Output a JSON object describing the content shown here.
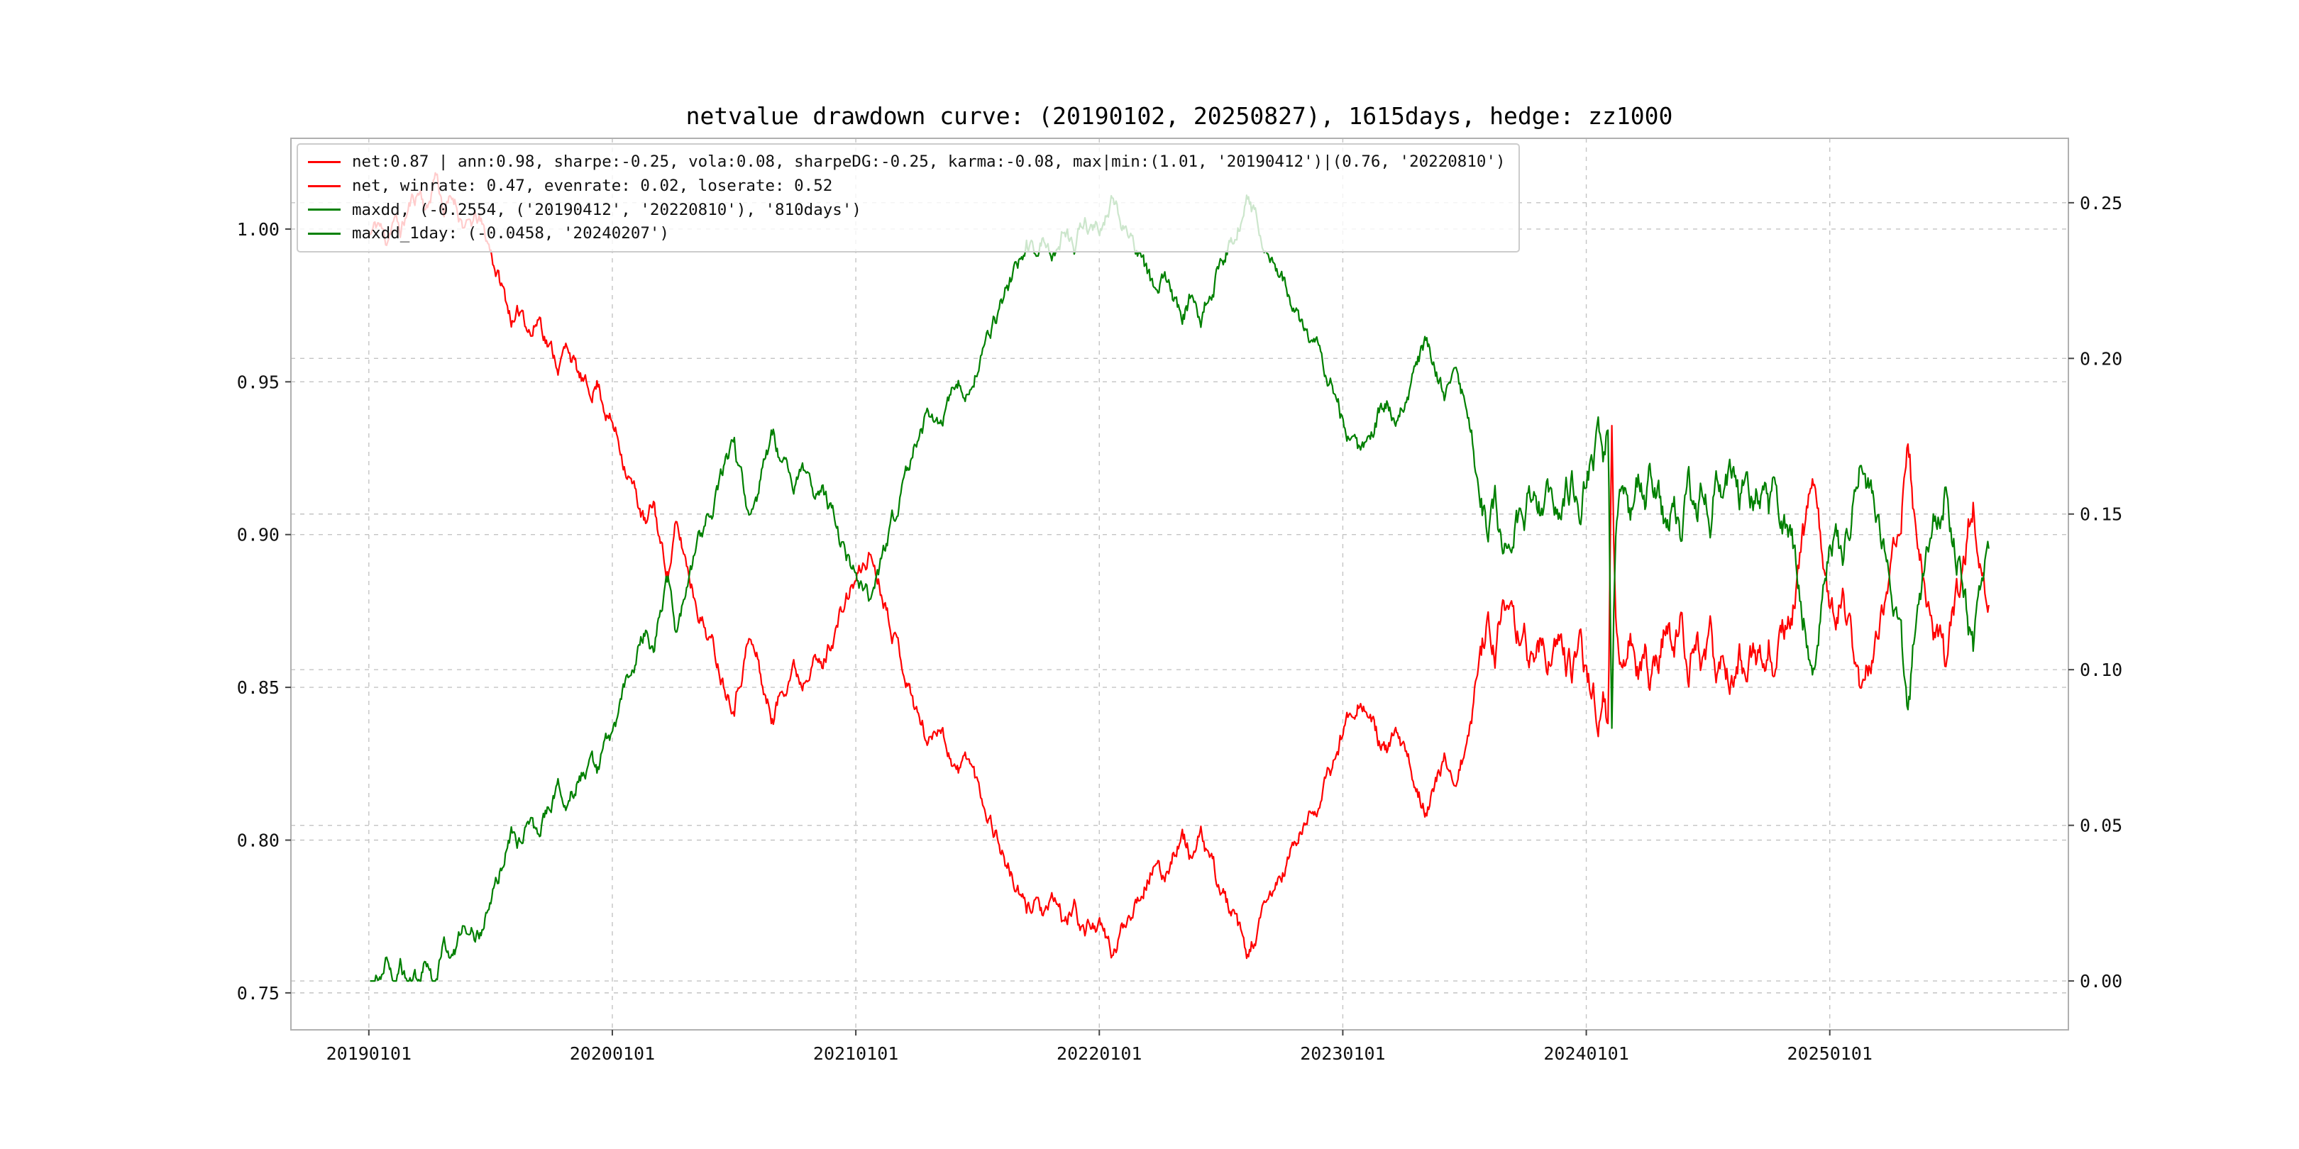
{
  "window": {
    "background": "#ffffff"
  },
  "chart_data": {
    "type": "line",
    "title": "netvalue drawdown curve: (20190102, 20250827), 1615days, hedge: zz1000",
    "x_tick_labels": [
      "20190101",
      "20200101",
      "20210101",
      "20220101",
      "20230101",
      "20240101",
      "20250101"
    ],
    "x_tick_years": [
      2019,
      2020,
      2021,
      2022,
      2023,
      2024,
      2025
    ],
    "x_range_years": [
      2018.68,
      2025.98
    ],
    "left_axis": {
      "ticks": [
        0.75,
        0.8,
        0.85,
        0.9,
        0.95,
        1.0
      ],
      "range": [
        0.7379,
        1.0297
      ]
    },
    "right_axis": {
      "ticks": [
        0.0,
        0.05,
        0.1,
        0.15,
        0.2,
        0.25
      ],
      "range": [
        -0.0157,
        0.2707
      ]
    },
    "grid": {
      "on": true,
      "style": "dashed",
      "color": "#c4c4c4"
    },
    "spine_color": "#b0b0b0",
    "tick_color": "#444444",
    "label_color": "#111111",
    "legend": {
      "position": "upper-left",
      "entries": [
        {
          "color": "#ff0000",
          "label": "net:0.87 | ann:0.98, sharpe:-0.25, vola:0.08, sharpeDG:-0.25, karma:-0.08, max|min:(1.01, '20190412')|(0.76, '20220810')"
        },
        {
          "color": "#ff0000",
          "label": "net, winrate: 0.47, evenrate: 0.02, loserate: 0.52"
        },
        {
          "color": "#008000",
          "label": "maxdd, (-0.2554, ('20190412', '20220810'), '810days')"
        },
        {
          "color": "#008000",
          "label": "maxdd_1day: (-0.0458, '20240207')"
        }
      ]
    },
    "stats": {
      "period_start": "20190102",
      "period_end": "20250827",
      "days": 1615,
      "hedge": "zz1000",
      "net": 0.87,
      "ann": 0.98,
      "sharpe": -0.25,
      "vola": 0.08,
      "sharpeDG": -0.25,
      "karma": -0.08,
      "max": {
        "value": 1.01,
        "date": "20190412"
      },
      "min": {
        "value": 0.76,
        "date": "20220810"
      },
      "winrate": 0.47,
      "evenrate": 0.02,
      "loserate": 0.52,
      "maxdd": {
        "value": -0.2554,
        "from": "20190412",
        "to": "20220810",
        "duration": "810days"
      },
      "maxdd_1day": {
        "value": -0.0458,
        "date": "20240207"
      }
    },
    "series": [
      {
        "name": "net",
        "axis": "left",
        "color": "#ff0000",
        "keypoints": [
          [
            2019.005,
            0.998
          ],
          [
            2019.04,
            1.002
          ],
          [
            2019.07,
            0.996
          ],
          [
            2019.1,
            1.004
          ],
          [
            2019.13,
            0.999
          ],
          [
            2019.17,
            1.008
          ],
          [
            2019.21,
            1.013
          ],
          [
            2019.24,
            1.006
          ],
          [
            2019.275,
            1.0194
          ],
          [
            2019.31,
            1.006
          ],
          [
            2019.35,
            1.01
          ],
          [
            2019.4,
            1.0
          ],
          [
            2019.45,
            1.003
          ],
          [
            2019.5,
            0.993
          ],
          [
            2019.53,
            0.985
          ],
          [
            2019.57,
            0.975
          ],
          [
            2019.6,
            0.968
          ],
          [
            2019.63,
            0.974
          ],
          [
            2019.67,
            0.966
          ],
          [
            2019.7,
            0.972
          ],
          [
            2019.74,
            0.962
          ],
          [
            2019.78,
            0.956
          ],
          [
            2019.82,
            0.962
          ],
          [
            2019.86,
            0.952
          ],
          [
            2019.9,
            0.946
          ],
          [
            2019.94,
            0.95
          ],
          [
            2019.98,
            0.94
          ],
          [
            2020.02,
            0.932
          ],
          [
            2020.06,
            0.922
          ],
          [
            2020.1,
            0.912
          ],
          [
            2020.14,
            0.902
          ],
          [
            2020.17,
            0.91
          ],
          [
            2020.2,
            0.896
          ],
          [
            2020.23,
            0.888
          ],
          [
            2020.26,
            0.902
          ],
          [
            2020.3,
            0.892
          ],
          [
            2020.34,
            0.88
          ],
          [
            2020.38,
            0.87
          ],
          [
            2020.42,
            0.862
          ],
          [
            2020.46,
            0.852
          ],
          [
            2020.5,
            0.846
          ],
          [
            2020.53,
            0.856
          ],
          [
            2020.56,
            0.866
          ],
          [
            2020.6,
            0.858
          ],
          [
            2020.63,
            0.846
          ],
          [
            2020.66,
            0.84
          ],
          [
            2020.7,
            0.85
          ],
          [
            2020.74,
            0.858
          ],
          [
            2020.78,
            0.852
          ],
          [
            2020.82,
            0.862
          ],
          [
            2020.86,
            0.856
          ],
          [
            2020.9,
            0.866
          ],
          [
            2020.94,
            0.874
          ],
          [
            2020.98,
            0.882
          ],
          [
            2021.02,
            0.888
          ],
          [
            2021.06,
            0.894
          ],
          [
            2021.1,
            0.884
          ],
          [
            2021.14,
            0.874
          ],
          [
            2021.18,
            0.862
          ],
          [
            2021.22,
            0.85
          ],
          [
            2021.26,
            0.84
          ],
          [
            2021.3,
            0.832
          ],
          [
            2021.34,
            0.84
          ],
          [
            2021.38,
            0.83
          ],
          [
            2021.42,
            0.822
          ],
          [
            2021.46,
            0.828
          ],
          [
            2021.5,
            0.818
          ],
          [
            2021.54,
            0.81
          ],
          [
            2021.58,
            0.802
          ],
          [
            2021.62,
            0.792
          ],
          [
            2021.66,
            0.784
          ],
          [
            2021.7,
            0.776
          ],
          [
            2021.74,
            0.782
          ],
          [
            2021.78,
            0.774
          ],
          [
            2021.82,
            0.78
          ],
          [
            2021.86,
            0.772
          ],
          [
            2021.9,
            0.778
          ],
          [
            2021.94,
            0.77
          ],
          [
            2021.98,
            0.774
          ],
          [
            2022.02,
            0.768
          ],
          [
            2022.06,
            0.762
          ],
          [
            2022.1,
            0.772
          ],
          [
            2022.14,
            0.78
          ],
          [
            2022.18,
            0.786
          ],
          [
            2022.22,
            0.792
          ],
          [
            2022.26,
            0.786
          ],
          [
            2022.3,
            0.796
          ],
          [
            2022.34,
            0.802
          ],
          [
            2022.38,
            0.794
          ],
          [
            2022.42,
            0.8
          ],
          [
            2022.46,
            0.792
          ],
          [
            2022.5,
            0.784
          ],
          [
            2022.54,
            0.776
          ],
          [
            2022.58,
            0.768
          ],
          [
            2022.605,
            0.7595
          ],
          [
            2022.64,
            0.768
          ],
          [
            2022.68,
            0.776
          ],
          [
            2022.72,
            0.784
          ],
          [
            2022.76,
            0.79
          ],
          [
            2022.8,
            0.798
          ],
          [
            2022.84,
            0.804
          ],
          [
            2022.88,
            0.81
          ],
          [
            2022.92,
            0.816
          ],
          [
            2022.96,
            0.824
          ],
          [
            2023.0,
            0.836
          ],
          [
            2023.04,
            0.844
          ],
          [
            2023.07,
            0.848
          ],
          [
            2023.1,
            0.842
          ],
          [
            2023.14,
            0.834
          ],
          [
            2023.18,
            0.828
          ],
          [
            2023.22,
            0.834
          ],
          [
            2023.26,
            0.826
          ],
          [
            2023.3,
            0.818
          ],
          [
            2023.34,
            0.812
          ],
          [
            2023.38,
            0.818
          ],
          [
            2023.42,
            0.826
          ],
          [
            2023.46,
            0.82
          ],
          [
            2023.5,
            0.828
          ],
          [
            2023.53,
            0.838
          ],
          [
            2023.56,
            0.862
          ],
          [
            2023.6,
            0.872
          ],
          [
            2023.63,
            0.865
          ],
          [
            2023.66,
            0.874
          ],
          [
            2023.7,
            0.864
          ],
          [
            2023.74,
            0.87
          ],
          [
            2023.78,
            0.858
          ],
          [
            2023.82,
            0.866
          ],
          [
            2023.86,
            0.856
          ],
          [
            2023.9,
            0.864
          ],
          [
            2023.94,
            0.854
          ],
          [
            2023.98,
            0.862
          ],
          [
            2024.02,
            0.85
          ],
          [
            2024.05,
            0.844
          ],
          [
            2024.07,
            0.848
          ],
          [
            2024.09,
            0.836
          ],
          [
            2024.105,
            0.933
          ],
          [
            2024.12,
            0.87
          ],
          [
            2024.15,
            0.856
          ],
          [
            2024.18,
            0.866
          ],
          [
            2024.21,
            0.854
          ],
          [
            2024.24,
            0.864
          ],
          [
            2024.27,
            0.852
          ],
          [
            2024.3,
            0.862
          ],
          [
            2024.33,
            0.872
          ],
          [
            2024.36,
            0.86
          ],
          [
            2024.39,
            0.87
          ],
          [
            2024.42,
            0.858
          ],
          [
            2024.45,
            0.868
          ],
          [
            2024.48,
            0.856
          ],
          [
            2024.51,
            0.864
          ],
          [
            2024.54,
            0.852
          ],
          [
            2024.57,
            0.862
          ],
          [
            2024.6,
            0.85
          ],
          [
            2024.63,
            0.86
          ],
          [
            2024.66,
            0.848
          ],
          [
            2024.69,
            0.858
          ],
          [
            2024.72,
            0.856
          ],
          [
            2024.75,
            0.866
          ],
          [
            2024.78,
            0.854
          ],
          [
            2024.81,
            0.864
          ],
          [
            2024.84,
            0.874
          ],
          [
            2024.87,
            0.886
          ],
          [
            2024.9,
            0.9
          ],
          [
            2024.93,
            0.922
          ],
          [
            2024.96,
            0.898
          ],
          [
            2024.99,
            0.884
          ],
          [
            2025.02,
            0.872
          ],
          [
            2025.05,
            0.882
          ],
          [
            2025.08,
            0.868
          ],
          [
            2025.11,
            0.856
          ],
          [
            2025.14,
            0.846
          ],
          [
            2025.17,
            0.858
          ],
          [
            2025.2,
            0.87
          ],
          [
            2025.23,
            0.882
          ],
          [
            2025.26,
            0.895
          ],
          [
            2025.29,
            0.91
          ],
          [
            2025.32,
            0.928
          ],
          [
            2025.35,
            0.905
          ],
          [
            2025.38,
            0.89
          ],
          [
            2025.41,
            0.878
          ],
          [
            2025.44,
            0.866
          ],
          [
            2025.47,
            0.856
          ],
          [
            2025.5,
            0.868
          ],
          [
            2025.53,
            0.88
          ],
          [
            2025.56,
            0.895
          ],
          [
            2025.59,
            0.912
          ],
          [
            2025.62,
            0.895
          ],
          [
            2025.64,
            0.878
          ],
          [
            2025.655,
            0.872
          ]
        ]
      },
      {
        "name": "maxdd",
        "axis": "right",
        "color": "#008000",
        "derived": "1 - net / cummax(net)"
      }
    ]
  }
}
